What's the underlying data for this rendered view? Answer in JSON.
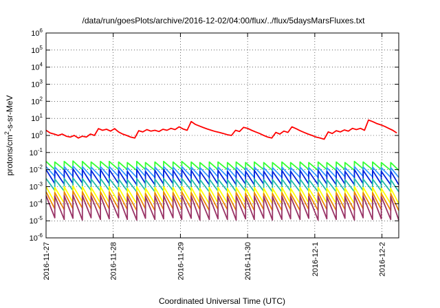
{
  "chart_data": {
    "type": "line",
    "title": "/data/run/goesPlots/archive/2016-12-02/04:00/flux/../flux/5daysMarsFluxes.txt",
    "xlabel": "Coordinated Universal Time (UTC)",
    "ylabel": "protons/cm²-s-sr-MeV",
    "y_scale": "log",
    "ylim_exp": [
      -6,
      6
    ],
    "y_tick_exps": [
      -6,
      -5,
      -4,
      -3,
      -2,
      -1,
      0,
      1,
      2,
      3,
      4,
      5,
      6
    ],
    "xlim_days": [
      0,
      5.25
    ],
    "x_ticks": [
      {
        "label": "2016-11-27",
        "day": 0
      },
      {
        "label": "2016-11-28",
        "day": 1
      },
      {
        "label": "2016-11-29",
        "day": 2
      },
      {
        "label": "2016-11-30",
        "day": 3
      },
      {
        "label": "2016-12-1",
        "day": 4
      },
      {
        "label": "2016-12-2",
        "day": 5
      }
    ],
    "grid": true,
    "series": [
      {
        "color": "#ff0000",
        "x": [
          0.0,
          0.06,
          0.12,
          0.18,
          0.24,
          0.3,
          0.36,
          0.42,
          0.48,
          0.54,
          0.6,
          0.66,
          0.72,
          0.78,
          0.84,
          0.9,
          0.96,
          1.02,
          1.08,
          1.14,
          1.2,
          1.26,
          1.32,
          1.38,
          1.44,
          1.5,
          1.56,
          1.62,
          1.68,
          1.74,
          1.8,
          1.86,
          1.92,
          1.98,
          2.04,
          2.1,
          2.16,
          2.22,
          2.28,
          2.34,
          2.4,
          2.46,
          2.52,
          2.58,
          2.64,
          2.7,
          2.76,
          2.82,
          2.88,
          2.94,
          3.0,
          3.06,
          3.12,
          3.18,
          3.24,
          3.3,
          3.36,
          3.42,
          3.48,
          3.54,
          3.6,
          3.66,
          3.72,
          3.78,
          3.84,
          3.9,
          3.96,
          4.02,
          4.08,
          4.14,
          4.2,
          4.26,
          4.32,
          4.38,
          4.44,
          4.5,
          4.56,
          4.62,
          4.68,
          4.74,
          4.8,
          4.86,
          4.92,
          4.98,
          5.04,
          5.1,
          5.16,
          5.22
        ],
        "values": [
          2.0,
          1.4,
          1.2,
          1.0,
          1.2,
          0.9,
          0.8,
          1.0,
          0.7,
          0.9,
          0.8,
          1.2,
          1.0,
          2.5,
          2.0,
          2.3,
          1.8,
          2.5,
          1.6,
          1.2,
          1.0,
          0.8,
          0.7,
          1.9,
          1.6,
          2.2,
          1.8,
          2.0,
          1.7,
          2.3,
          2.0,
          2.6,
          2.2,
          3.2,
          2.4,
          2.0,
          6.5,
          4.5,
          3.6,
          2.9,
          2.4,
          2.0,
          1.7,
          1.5,
          1.3,
          1.1,
          1.0,
          2.0,
          1.7,
          3.0,
          2.6,
          2.0,
          1.6,
          1.3,
          1.0,
          0.8,
          0.7,
          1.5,
          1.2,
          1.8,
          1.5,
          3.2,
          2.5,
          1.9,
          1.5,
          1.2,
          1.0,
          0.8,
          0.7,
          0.6,
          1.6,
          1.3,
          1.9,
          1.6,
          2.1,
          1.8,
          2.6,
          2.2,
          2.6,
          2.0,
          8.0,
          6.5,
          5.0,
          4.2,
          3.4,
          2.6,
          2.0,
          1.4
        ]
      },
      {
        "color": "#33ff33",
        "peak_days": [
          0.0,
          0.13,
          0.27,
          0.4,
          0.54,
          0.67,
          0.81,
          0.94,
          1.08,
          1.21,
          1.35,
          1.48,
          1.62,
          1.75,
          1.89,
          2.02,
          2.16,
          2.29,
          2.43,
          2.56,
          2.7,
          2.83,
          2.97,
          3.1,
          3.24,
          3.37,
          3.51,
          3.64,
          3.78,
          3.91,
          4.05,
          4.18,
          4.32,
          4.45,
          4.59,
          4.72,
          4.86,
          4.99,
          5.13
        ],
        "peak_values": [
          0.03,
          0.028,
          0.03,
          0.032,
          0.03,
          0.028,
          0.03,
          0.03,
          0.028,
          0.026,
          0.03,
          0.026,
          0.028,
          0.03,
          0.028,
          0.03,
          0.028,
          0.026,
          0.028,
          0.028,
          0.026,
          0.028,
          0.026,
          0.028,
          0.026,
          0.026,
          0.028,
          0.026,
          0.028,
          0.026,
          0.028,
          0.026,
          0.028,
          0.026,
          0.03,
          0.028,
          0.028,
          0.026,
          0.026
        ],
        "trough_values": [
          0.01,
          0.01,
          0.011,
          0.01,
          0.01,
          0.01,
          0.011,
          0.01,
          0.01,
          0.009,
          0.01,
          0.009,
          0.01,
          0.01,
          0.01,
          0.01,
          0.01,
          0.009,
          0.01,
          0.01,
          0.009,
          0.01,
          0.009,
          0.01,
          0.009,
          0.009,
          0.01,
          0.009,
          0.01,
          0.009,
          0.01,
          0.009,
          0.01,
          0.009,
          0.011,
          0.01,
          0.01,
          0.009,
          0.009
        ]
      },
      {
        "color": "#3399ff",
        "peak_days": [
          0.0,
          0.13,
          0.27,
          0.4,
          0.54,
          0.67,
          0.81,
          0.94,
          1.08,
          1.21,
          1.35,
          1.48,
          1.62,
          1.75,
          1.89,
          2.02,
          2.16,
          2.29,
          2.43,
          2.56,
          2.7,
          2.83,
          2.97,
          3.1,
          3.24,
          3.37,
          3.51,
          3.64,
          3.78,
          3.91,
          4.05,
          4.18,
          4.32,
          4.45,
          4.59,
          4.72,
          4.86,
          4.99,
          5.13
        ],
        "peak_values": [
          0.015,
          0.014,
          0.015,
          0.016,
          0.015,
          0.014,
          0.015,
          0.015,
          0.014,
          0.013,
          0.015,
          0.013,
          0.014,
          0.015,
          0.014,
          0.015,
          0.014,
          0.013,
          0.014,
          0.014,
          0.013,
          0.014,
          0.013,
          0.014,
          0.013,
          0.013,
          0.014,
          0.013,
          0.014,
          0.013,
          0.014,
          0.013,
          0.014,
          0.013,
          0.015,
          0.014,
          0.014,
          0.013,
          0.013
        ],
        "trough_values": [
          0.004,
          0.0038,
          0.004,
          0.0042,
          0.004,
          0.0038,
          0.004,
          0.004,
          0.0038,
          0.0035,
          0.004,
          0.0035,
          0.0038,
          0.004,
          0.0038,
          0.004,
          0.0038,
          0.0035,
          0.0038,
          0.0038,
          0.0035,
          0.0038,
          0.0035,
          0.0038,
          0.0035,
          0.0035,
          0.0038,
          0.0035,
          0.0038,
          0.0035,
          0.0038,
          0.0035,
          0.0038,
          0.0035,
          0.004,
          0.0038,
          0.0038,
          0.0035,
          0.0035
        ]
      },
      {
        "color": "#0022dd",
        "peak_days": [
          0.0,
          0.13,
          0.27,
          0.4,
          0.54,
          0.67,
          0.81,
          0.94,
          1.08,
          1.21,
          1.35,
          1.48,
          1.62,
          1.75,
          1.89,
          2.02,
          2.16,
          2.29,
          2.43,
          2.56,
          2.7,
          2.83,
          2.97,
          3.1,
          3.24,
          3.37,
          3.51,
          3.64,
          3.78,
          3.91,
          4.05,
          4.18,
          4.32,
          4.45,
          4.59,
          4.72,
          4.86,
          4.99,
          5.13
        ],
        "peak_values": [
          0.01,
          0.009,
          0.01,
          0.011,
          0.01,
          0.009,
          0.01,
          0.01,
          0.009,
          0.008,
          0.01,
          0.008,
          0.009,
          0.01,
          0.009,
          0.01,
          0.009,
          0.008,
          0.009,
          0.009,
          0.008,
          0.009,
          0.008,
          0.009,
          0.008,
          0.008,
          0.009,
          0.008,
          0.009,
          0.008,
          0.009,
          0.008,
          0.009,
          0.008,
          0.01,
          0.009,
          0.009,
          0.008,
          0.008
        ],
        "trough_values": [
          0.0015,
          0.0014,
          0.0015,
          0.0016,
          0.0015,
          0.0014,
          0.0015,
          0.0015,
          0.0014,
          0.0013,
          0.0015,
          0.0013,
          0.0014,
          0.0015,
          0.0014,
          0.0015,
          0.0014,
          0.0013,
          0.0014,
          0.0014,
          0.0013,
          0.0014,
          0.0013,
          0.0014,
          0.0013,
          0.0013,
          0.0014,
          0.0013,
          0.0014,
          0.0013,
          0.0014,
          0.0013,
          0.0014,
          0.0013,
          0.0015,
          0.0014,
          0.0014,
          0.0013,
          0.0013
        ]
      },
      {
        "color": "#22bbaa",
        "peak_days": [
          0.0,
          0.13,
          0.27,
          0.4,
          0.54,
          0.67,
          0.81,
          0.94,
          1.08,
          1.21,
          1.35,
          1.48,
          1.62,
          1.75,
          1.89,
          2.02,
          2.16,
          2.29,
          2.43,
          2.56,
          2.7,
          2.83,
          2.97,
          3.1,
          3.24,
          3.37,
          3.51,
          3.64,
          3.78,
          3.91,
          4.05,
          4.18,
          4.32,
          4.45,
          4.59,
          4.72,
          4.86,
          4.99,
          5.13
        ],
        "peak_values": [
          0.003,
          0.0028,
          0.003,
          0.0032,
          0.003,
          0.0028,
          0.003,
          0.003,
          0.0028,
          0.0026,
          0.003,
          0.0026,
          0.0028,
          0.003,
          0.0028,
          0.003,
          0.0028,
          0.0026,
          0.0028,
          0.0028,
          0.0026,
          0.0028,
          0.0026,
          0.0028,
          0.0026,
          0.0026,
          0.0028,
          0.0026,
          0.0028,
          0.0026,
          0.0028,
          0.0026,
          0.0028,
          0.0026,
          0.003,
          0.0028,
          0.0028,
          0.0026,
          0.0026
        ],
        "trough_values": [
          0.0006,
          0.00055,
          0.0006,
          0.00065,
          0.0006,
          0.00055,
          0.0006,
          0.0006,
          0.00055,
          0.0005,
          0.0006,
          0.0005,
          0.00055,
          0.0006,
          0.00055,
          0.0006,
          0.00055,
          0.0005,
          0.00055,
          0.00055,
          0.0005,
          0.00055,
          0.0005,
          0.00055,
          0.0005,
          0.0005,
          0.00055,
          0.0005,
          0.00055,
          0.0005,
          0.00055,
          0.0005,
          0.00055,
          0.0005,
          0.0006,
          0.00055,
          0.00055,
          0.0005,
          0.0005
        ]
      },
      {
        "color": "#ffff00",
        "peak_days": [
          0.0,
          0.13,
          0.27,
          0.4,
          0.54,
          0.67,
          0.81,
          0.94,
          1.08,
          1.21,
          1.35,
          1.48,
          1.62,
          1.75,
          1.89,
          2.02,
          2.16,
          2.29,
          2.43,
          2.56,
          2.7,
          2.83,
          2.97,
          3.1,
          3.24,
          3.37,
          3.51,
          3.64,
          3.78,
          3.91,
          4.05,
          4.18,
          4.32,
          4.45,
          4.59,
          4.72,
          4.86,
          4.99,
          5.13
        ],
        "peak_values": [
          0.001,
          0.0009,
          0.001,
          0.0011,
          0.001,
          0.0009,
          0.001,
          0.001,
          0.0009,
          0.0008,
          0.001,
          0.0008,
          0.0009,
          0.001,
          0.0009,
          0.001,
          0.0009,
          0.0008,
          0.0009,
          0.0009,
          0.0008,
          0.0009,
          0.0008,
          0.0009,
          0.0008,
          0.0008,
          0.0009,
          0.0008,
          0.0009,
          0.0008,
          0.0009,
          0.0008,
          0.0009,
          0.0008,
          0.001,
          0.0009,
          0.0009,
          0.0008,
          0.0008
        ],
        "trough_values": [
          0.00012,
          0.00011,
          0.00012,
          0.00013,
          0.00012,
          0.00011,
          0.00012,
          0.00012,
          0.00011,
          0.0001,
          0.00012,
          0.0001,
          0.00011,
          0.00012,
          0.00011,
          0.00012,
          0.00011,
          0.0001,
          0.00011,
          0.00011,
          0.0001,
          0.00011,
          0.0001,
          0.00011,
          0.0001,
          0.0001,
          0.00011,
          0.0001,
          0.00011,
          0.0001,
          0.00011,
          0.0001,
          0.00011,
          0.0001,
          0.00012,
          0.00011,
          0.00011,
          0.0001,
          0.0001
        ]
      },
      {
        "color": "#ee8800",
        "peak_days": [
          0.0,
          0.13,
          0.27,
          0.4,
          0.54,
          0.67,
          0.81,
          0.94,
          1.08,
          1.21,
          1.35,
          1.48,
          1.62,
          1.75,
          1.89,
          2.02,
          2.16,
          2.29,
          2.43,
          2.56,
          2.7,
          2.83,
          2.97,
          3.1,
          3.24,
          3.37,
          3.51,
          3.64,
          3.78,
          3.91,
          4.05,
          4.18,
          4.32,
          4.45,
          4.59,
          4.72,
          4.86,
          4.99,
          5.13
        ],
        "peak_values": [
          0.0005,
          0.00045,
          0.0005,
          0.00055,
          0.0005,
          0.00045,
          0.0005,
          0.0005,
          0.00045,
          0.0004,
          0.0005,
          0.0004,
          0.00045,
          0.0005,
          0.00045,
          0.0005,
          0.00045,
          0.0004,
          0.00045,
          0.00045,
          0.0004,
          0.00045,
          0.0004,
          0.00045,
          0.0004,
          0.0004,
          0.00045,
          0.0004,
          0.00045,
          0.0004,
          0.00045,
          0.0004,
          0.00045,
          0.0004,
          0.0005,
          0.00045,
          0.00045,
          0.0004,
          0.0004
        ],
        "trough_values": [
          5e-05,
          4.5e-05,
          5e-05,
          5.5e-05,
          5e-05,
          4.5e-05,
          5e-05,
          5e-05,
          4.5e-05,
          4e-05,
          5e-05,
          4e-05,
          4.5e-05,
          5e-05,
          4.5e-05,
          5e-05,
          4.5e-05,
          4e-05,
          4.5e-05,
          4.5e-05,
          4e-05,
          4.5e-05,
          4e-05,
          4.5e-05,
          4e-05,
          4e-05,
          4.5e-05,
          4e-05,
          4.5e-05,
          4e-05,
          4.5e-05,
          4e-05,
          4.5e-05,
          4e-05,
          5e-05,
          4.5e-05,
          4.5e-05,
          4e-05,
          4e-05
        ]
      },
      {
        "color": "#993366",
        "peak_days": [
          0.0,
          0.13,
          0.27,
          0.4,
          0.54,
          0.67,
          0.81,
          0.94,
          1.08,
          1.21,
          1.35,
          1.48,
          1.62,
          1.75,
          1.89,
          2.02,
          2.16,
          2.29,
          2.43,
          2.56,
          2.7,
          2.83,
          2.97,
          3.1,
          3.24,
          3.37,
          3.51,
          3.64,
          3.78,
          3.91,
          4.05,
          4.18,
          4.32,
          4.45,
          4.59,
          4.72,
          4.86,
          4.99,
          5.13
        ],
        "peak_values": [
          0.0003,
          0.00028,
          0.0003,
          0.00032,
          0.0003,
          0.00028,
          0.0003,
          0.0003,
          0.00028,
          0.00026,
          0.0003,
          0.00026,
          0.00028,
          0.0003,
          0.00028,
          0.0003,
          0.00028,
          0.00026,
          0.00028,
          0.00028,
          0.00026,
          0.00028,
          0.00026,
          0.00028,
          0.00026,
          0.00026,
          0.00028,
          0.00026,
          0.00028,
          0.00026,
          0.00028,
          0.00026,
          0.00028,
          0.00026,
          0.0003,
          0.00028,
          0.00028,
          0.00026,
          0.00026
        ],
        "trough_values": [
          1.5e-05,
          1.2e-05,
          1.4e-05,
          1.1e-05,
          1.5e-05,
          1.2e-05,
          1.3e-05,
          1.5e-05,
          1.2e-05,
          1.1e-05,
          1.4e-05,
          1.2e-05,
          1.3e-05,
          1.5e-05,
          1.2e-05,
          1.4e-05,
          1.1e-05,
          1.2e-05,
          1.3e-05,
          1.2e-05,
          1.1e-05,
          1.3e-05,
          1.2e-05,
          1.4e-05,
          1.1e-05,
          1.2e-05,
          1.3e-05,
          1.2e-05,
          1.4e-05,
          1.1e-05,
          1.3e-05,
          1.2e-05,
          1.4e-05,
          1.1e-05,
          1.5e-05,
          1.2e-05,
          1.3e-05,
          1.2e-05,
          1.1e-05
        ]
      }
    ]
  }
}
